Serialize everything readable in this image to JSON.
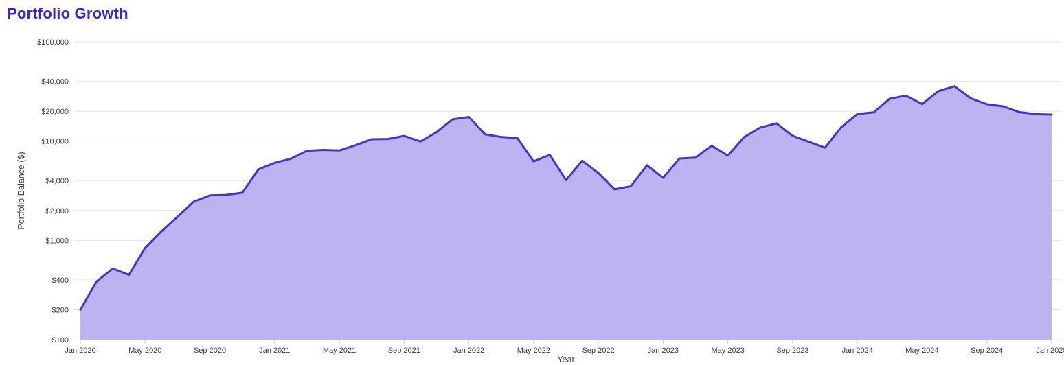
{
  "chart": {
    "title": "Portfolio Growth",
    "ylabel": "Portfolio Balance ($)",
    "xlabel": "Year"
  },
  "colors": {
    "title": "#3C22DD",
    "line": "#4B2FD3",
    "fill": "#BDB3F1",
    "gridline": "#E4E4E8",
    "tick": "#C9C9CE",
    "axis_text": "#3C3C3C",
    "background": "#FFFFFF"
  },
  "chart_data": {
    "type": "area",
    "title": "Portfolio Growth",
    "xlabel": "Year",
    "ylabel": "Portfolio Balance ($)",
    "y_scale": "log",
    "ylim": [
      100,
      100000
    ],
    "grid": "horizontal-only",
    "legend": "none",
    "y_ticks": [
      {
        "value": 100,
        "label": "$100"
      },
      {
        "value": 200,
        "label": "$200"
      },
      {
        "value": 400,
        "label": "$400"
      },
      {
        "value": 1000,
        "label": "$1,000"
      },
      {
        "value": 2000,
        "label": "$2,000"
      },
      {
        "value": 4000,
        "label": "$4,000"
      },
      {
        "value": 10000,
        "label": "$10,000"
      },
      {
        "value": 20000,
        "label": "$20,000"
      },
      {
        "value": 40000,
        "label": "$40,000"
      },
      {
        "value": 100000,
        "label": "$100,000"
      }
    ],
    "x_tick_labels": [
      "Jan 2020",
      "May 2020",
      "Sep 2020",
      "Jan 2021",
      "May 2021",
      "Sep 2021",
      "Jan 2022",
      "May 2022",
      "Sep 2022",
      "Jan 2023",
      "May 2023",
      "Sep 2023",
      "Jan 2024",
      "May 2024",
      "Sep 2024",
      "Jan 2025"
    ],
    "x_tick_interval_months": 4,
    "months": [
      "Jan 2020",
      "Feb 2020",
      "Mar 2020",
      "Apr 2020",
      "May 2020",
      "Jun 2020",
      "Jul 2020",
      "Aug 2020",
      "Sep 2020",
      "Oct 2020",
      "Nov 2020",
      "Dec 2020",
      "Jan 2021",
      "Feb 2021",
      "Mar 2021",
      "Apr 2021",
      "May 2021",
      "Jun 2021",
      "Jul 2021",
      "Aug 2021",
      "Sep 2021",
      "Oct 2021",
      "Nov 2021",
      "Dec 2021",
      "Jan 2022",
      "Feb 2022",
      "Mar 2022",
      "Apr 2022",
      "May 2022",
      "Jun 2022",
      "Jul 2022",
      "Aug 2022",
      "Sep 2022",
      "Oct 2022",
      "Nov 2022",
      "Dec 2022",
      "Jan 2023",
      "Feb 2023",
      "Mar 2023",
      "Apr 2023",
      "May 2023",
      "Jun 2023",
      "Jul 2023",
      "Aug 2023",
      "Sep 2023",
      "Oct 2023",
      "Nov 2023",
      "Dec 2023",
      "Jan 2024",
      "Feb 2024",
      "Mar 2024",
      "Apr 2024",
      "May 2024",
      "Jun 2024",
      "Jul 2024",
      "Aug 2024",
      "Sep 2024",
      "Oct 2024",
      "Nov 2024",
      "Dec 2024",
      "Jan 2025"
    ],
    "values": [
      200,
      385,
      520,
      450,
      840,
      1230,
      1730,
      2450,
      2840,
      2870,
      3020,
      5200,
      6040,
      6650,
      8000,
      8150,
      8050,
      9090,
      10440,
      10500,
      11300,
      9900,
      12300,
      16600,
      17500,
      11700,
      11000,
      10700,
      6250,
      7270,
      4050,
      6350,
      4780,
      3270,
      3510,
      5720,
      4270,
      6680,
      6820,
      9000,
      7150,
      10950,
      13700,
      15100,
      11300,
      9840,
      8600,
      13800,
      18750,
      19460,
      26760,
      28690,
      23600,
      31900,
      35700,
      27000,
      23500,
      22400,
      19600,
      18700,
      18500
    ]
  }
}
